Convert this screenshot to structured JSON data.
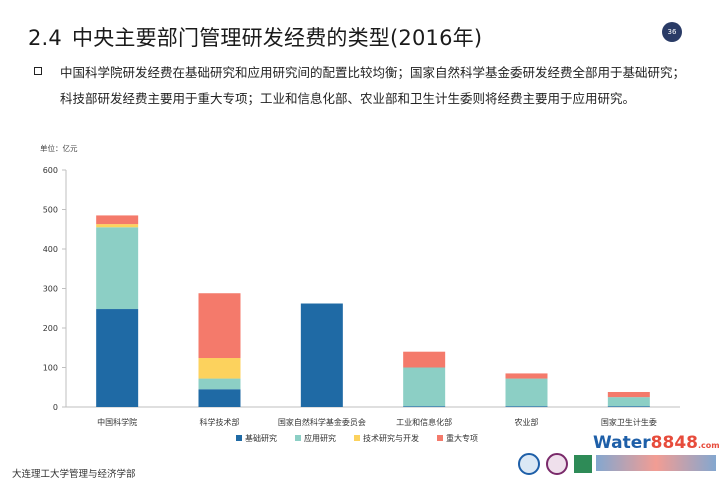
{
  "header": {
    "section_number": "2.4",
    "title": "中央主要部门管理研发经费的类型(2016年)",
    "page_number": "36"
  },
  "description": "中国科学院研发经费在基础研究和应用研究间的配置比较均衡；国家自然科学基金委研发经费全部用于基础研究；科技部研发经费主要用于重大专项；工业和信息化部、农业部和卫生计生委则将经费主要用于应用研究。",
  "unit_label": "单位：亿元",
  "footer": {
    "institution": "大连理工大学管理与经济学部",
    "watermark": "Water8848.com 中国水业网"
  },
  "chart_data": {
    "type": "bar",
    "stacked": true,
    "categories": [
      "中国科学院",
      "科学技术部",
      "国家自然科学基金委员会",
      "工业和信息化部",
      "农业部",
      "国家卫生计生委"
    ],
    "series": [
      {
        "name": "基础研究",
        "color": "#1f6aa5",
        "values": [
          248,
          45,
          262,
          2,
          2,
          2
        ]
      },
      {
        "name": "应用研究",
        "color": "#8ccfc5",
        "values": [
          207,
          27,
          0,
          98,
          70,
          23
        ]
      },
      {
        "name": "技术研究与开发",
        "color": "#fcd25d",
        "values": [
          8,
          52,
          0,
          0,
          0,
          0
        ]
      },
      {
        "name": "重大专项",
        "color": "#f47a6b",
        "values": [
          22,
          164,
          0,
          40,
          13,
          13
        ]
      }
    ],
    "ylim": [
      0,
      600
    ],
    "yticks": [
      0,
      100,
      200,
      300,
      400,
      500,
      600
    ],
    "grid": false,
    "legend_position": "bottom"
  }
}
